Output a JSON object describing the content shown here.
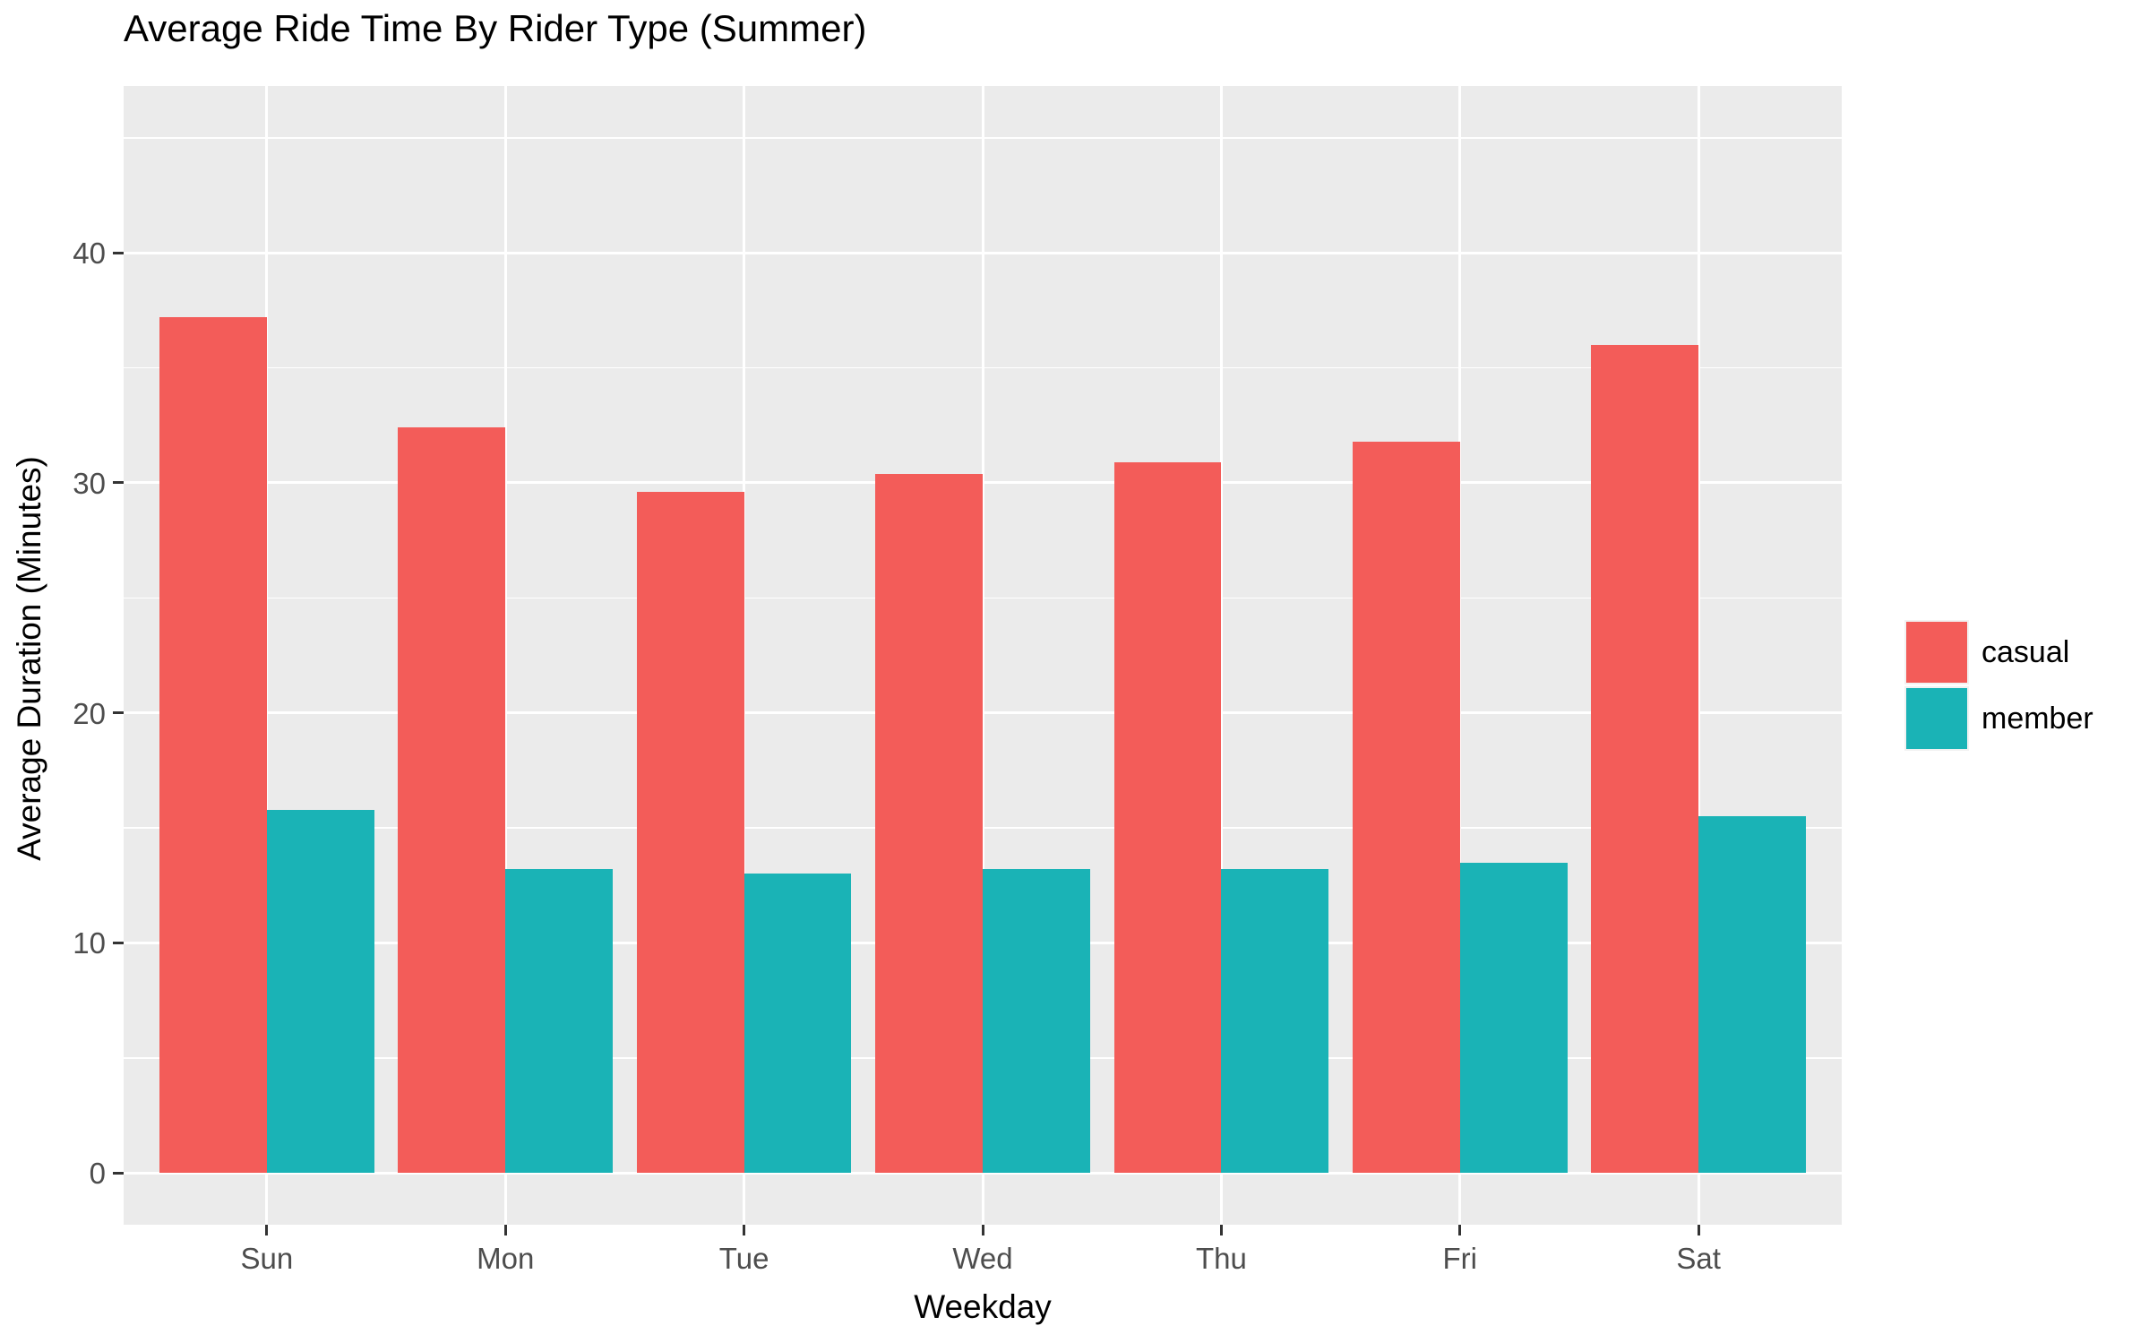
{
  "title": "Average Ride Time By Rider Type (Summer)",
  "chart_data": {
    "type": "bar",
    "grouped": true,
    "title": "Average Ride Time By Rider Type (Summer)",
    "xlabel": "Weekday",
    "ylabel": "Average Duration (Minutes)",
    "categories": [
      "Sun",
      "Mon",
      "Tue",
      "Wed",
      "Thu",
      "Fri",
      "Sat"
    ],
    "series": [
      {
        "name": "casual",
        "color": "#F35C59",
        "values": [
          37.2,
          32.4,
          29.6,
          30.4,
          30.9,
          31.8,
          36.0
        ]
      },
      {
        "name": "member",
        "color": "#1AB3B6",
        "values": [
          15.8,
          13.2,
          13.0,
          13.2,
          13.2,
          13.5,
          15.5
        ]
      }
    ],
    "ylim": [
      0,
      45
    ],
    "y_axis_range_expanded": [
      -2.25,
      47.25
    ],
    "y_major_ticks": [
      0,
      10,
      20,
      30,
      40
    ],
    "y_minor_ticks": [
      5,
      15,
      25,
      35,
      45
    ],
    "bar_width_fraction": 0.9,
    "grid": "on",
    "legend_position": "right",
    "colors": {
      "panel_background": "#EBEBEB",
      "gridline": "#FFFFFF",
      "tick_text": "#4D4D4D",
      "tick_mark": "#333333",
      "text": "#000000",
      "page_background": "#FFFFFF"
    }
  },
  "legend": {
    "entries": [
      {
        "label": "casual",
        "color": "#F35C59"
      },
      {
        "label": "member",
        "color": "#1AB3B6"
      }
    ]
  }
}
